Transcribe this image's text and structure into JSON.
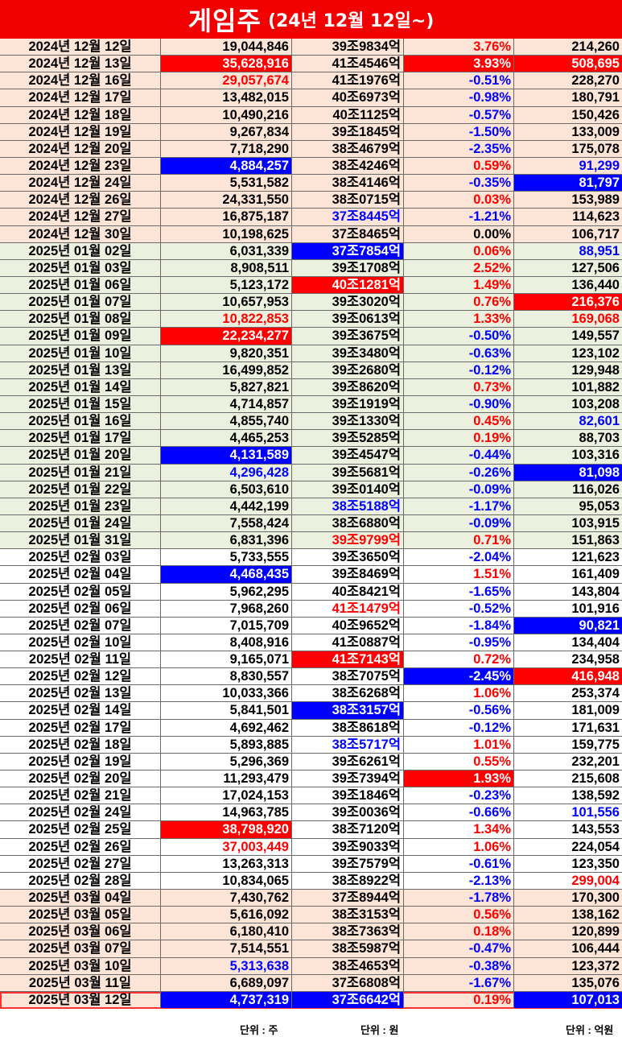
{
  "title": {
    "main": "게임주",
    "sub": "(24년 12월 12일~)"
  },
  "colors": {
    "title_bg": "#f20000",
    "peach": "#fce4d6",
    "green": "#ebf1de",
    "white": "#ffffff",
    "red": "#ff0000",
    "blue": "#0000ff"
  },
  "units": {
    "volume": "단위 : 주",
    "cap": "단위 : 원",
    "amount": "단위 : 억원"
  },
  "rows": [
    {
      "date": "2024년 12월 12일",
      "vol": "19,044,846",
      "cap": "39조9834억",
      "chg": "3.76%",
      "amt": "214,260",
      "bg": "peach",
      "vs": "n",
      "cs": "n",
      "hs": "r",
      "as": "n"
    },
    {
      "date": "2024년 12월 13일",
      "vol": "35,628,916",
      "cap": "41조4546억",
      "chg": "3.93%",
      "amt": "508,695",
      "bg": "peach",
      "vs": "R",
      "cs": "n",
      "hs": "R",
      "as": "R"
    },
    {
      "date": "2024년 12월 16일",
      "vol": "29,057,674",
      "cap": "41조1976억",
      "chg": "-0.51%",
      "amt": "228,270",
      "bg": "peach",
      "vs": "r",
      "cs": "n",
      "hs": "b",
      "as": "n"
    },
    {
      "date": "2024년 12월 17일",
      "vol": "13,482,015",
      "cap": "40조6973억",
      "chg": "-0.98%",
      "amt": "180,791",
      "bg": "peach",
      "vs": "n",
      "cs": "n",
      "hs": "b",
      "as": "n"
    },
    {
      "date": "2024년 12월 18일",
      "vol": "10,490,216",
      "cap": "40조1125억",
      "chg": "-0.57%",
      "amt": "150,426",
      "bg": "peach",
      "vs": "n",
      "cs": "n",
      "hs": "b",
      "as": "n"
    },
    {
      "date": "2024년 12월 19일",
      "vol": "9,267,834",
      "cap": "39조1845억",
      "chg": "-1.50%",
      "amt": "133,009",
      "bg": "peach",
      "vs": "n",
      "cs": "n",
      "hs": "b",
      "as": "n"
    },
    {
      "date": "2024년 12월 20일",
      "vol": "7,718,290",
      "cap": "38조4679억",
      "chg": "-2.35%",
      "amt": "175,078",
      "bg": "peach",
      "vs": "n",
      "cs": "n",
      "hs": "b",
      "as": "n"
    },
    {
      "date": "2024년 12월 23일",
      "vol": "4,884,257",
      "cap": "38조4246억",
      "chg": "0.59%",
      "amt": "91,299",
      "bg": "peach",
      "vs": "B",
      "cs": "n",
      "hs": "r",
      "as": "b"
    },
    {
      "date": "2024년 12월 24일",
      "vol": "5,531,582",
      "cap": "38조4146억",
      "chg": "-0.35%",
      "amt": "81,797",
      "bg": "peach",
      "vs": "n",
      "cs": "n",
      "hs": "b",
      "as": "B"
    },
    {
      "date": "2024년 12월 26일",
      "vol": "24,331,550",
      "cap": "38조0715억",
      "chg": "0.03%",
      "amt": "153,989",
      "bg": "peach",
      "vs": "n",
      "cs": "n",
      "hs": "r",
      "as": "n"
    },
    {
      "date": "2024년 12월 27일",
      "vol": "16,875,187",
      "cap": "37조8445억",
      "chg": "-1.21%",
      "amt": "114,623",
      "bg": "peach",
      "vs": "n",
      "cs": "b",
      "hs": "b",
      "as": "n"
    },
    {
      "date": "2024년 12월 30일",
      "vol": "10,198,625",
      "cap": "37조8465억",
      "chg": "0.00%",
      "amt": "106,717",
      "bg": "peach",
      "vs": "n",
      "cs": "n",
      "hs": "n",
      "as": "n"
    },
    {
      "date": "2025년 01월 02일",
      "vol": "6,031,339",
      "cap": "37조7854억",
      "chg": "0.06%",
      "amt": "88,951",
      "bg": "green",
      "vs": "n",
      "cs": "B",
      "hs": "r",
      "as": "b"
    },
    {
      "date": "2025년 01월 03일",
      "vol": "8,908,511",
      "cap": "39조1708억",
      "chg": "2.52%",
      "amt": "127,506",
      "bg": "green",
      "vs": "n",
      "cs": "n",
      "hs": "r",
      "as": "n"
    },
    {
      "date": "2025년 01월 06일",
      "vol": "5,123,172",
      "cap": "40조1281억",
      "chg": "1.49%",
      "amt": "136,440",
      "bg": "green",
      "vs": "n",
      "cs": "R",
      "hs": "r",
      "as": "n"
    },
    {
      "date": "2025년 01월 07일",
      "vol": "10,657,953",
      "cap": "39조3020억",
      "chg": "0.76%",
      "amt": "216,376",
      "bg": "green",
      "vs": "n",
      "cs": "n",
      "hs": "r",
      "as": "R"
    },
    {
      "date": "2025년 01월 08일",
      "vol": "10,822,853",
      "cap": "39조0613억",
      "chg": "1.33%",
      "amt": "169,068",
      "bg": "green",
      "vs": "r",
      "cs": "n",
      "hs": "r",
      "as": "r"
    },
    {
      "date": "2025년 01월 09일",
      "vol": "22,234,277",
      "cap": "39조3675억",
      "chg": "-0.50%",
      "amt": "149,557",
      "bg": "green",
      "vs": "R",
      "cs": "n",
      "hs": "b",
      "as": "n"
    },
    {
      "date": "2025년 01월 10일",
      "vol": "9,820,351",
      "cap": "39조3480억",
      "chg": "-0.63%",
      "amt": "123,102",
      "bg": "green",
      "vs": "n",
      "cs": "n",
      "hs": "b",
      "as": "n"
    },
    {
      "date": "2025년 01월 13일",
      "vol": "16,499,852",
      "cap": "39조2680억",
      "chg": "-0.12%",
      "amt": "129,948",
      "bg": "green",
      "vs": "n",
      "cs": "n",
      "hs": "b",
      "as": "n"
    },
    {
      "date": "2025년 01월 14일",
      "vol": "5,827,821",
      "cap": "39조8620억",
      "chg": "0.73%",
      "amt": "101,882",
      "bg": "green",
      "vs": "n",
      "cs": "n",
      "hs": "r",
      "as": "n"
    },
    {
      "date": "2025년 01월 15일",
      "vol": "4,714,857",
      "cap": "39조1919억",
      "chg": "-0.90%",
      "amt": "103,208",
      "bg": "green",
      "vs": "n",
      "cs": "n",
      "hs": "b",
      "as": "n"
    },
    {
      "date": "2025년 01월 16일",
      "vol": "4,855,740",
      "cap": "39조1330억",
      "chg": "0.45%",
      "amt": "82,601",
      "bg": "green",
      "vs": "n",
      "cs": "n",
      "hs": "r",
      "as": "b"
    },
    {
      "date": "2025년 01월 17일",
      "vol": "4,465,253",
      "cap": "39조5285억",
      "chg": "0.19%",
      "amt": "88,703",
      "bg": "green",
      "vs": "n",
      "cs": "n",
      "hs": "r",
      "as": "n"
    },
    {
      "date": "2025년 01월 20일",
      "vol": "4,131,589",
      "cap": "39조4547억",
      "chg": "-0.44%",
      "amt": "103,316",
      "bg": "green",
      "vs": "B",
      "cs": "n",
      "hs": "b",
      "as": "n"
    },
    {
      "date": "2025년 01월 21일",
      "vol": "4,296,428",
      "cap": "39조5681억",
      "chg": "-0.26%",
      "amt": "81,098",
      "bg": "green",
      "vs": "b",
      "cs": "n",
      "hs": "b",
      "as": "B"
    },
    {
      "date": "2025년 01월 22일",
      "vol": "6,503,610",
      "cap": "39조0140억",
      "chg": "-0.09%",
      "amt": "116,026",
      "bg": "green",
      "vs": "n",
      "cs": "n",
      "hs": "b",
      "as": "n"
    },
    {
      "date": "2025년 01월 23일",
      "vol": "4,442,199",
      "cap": "38조5188억",
      "chg": "-1.17%",
      "amt": "95,053",
      "bg": "green",
      "vs": "n",
      "cs": "b",
      "hs": "b",
      "as": "n"
    },
    {
      "date": "2025년 01월 24일",
      "vol": "7,558,424",
      "cap": "38조6880억",
      "chg": "-0.09%",
      "amt": "103,915",
      "bg": "green",
      "vs": "n",
      "cs": "n",
      "hs": "b",
      "as": "n"
    },
    {
      "date": "2025년 01월 31일",
      "vol": "6,831,396",
      "cap": "39조9799억",
      "chg": "0.71%",
      "amt": "151,863",
      "bg": "green",
      "vs": "n",
      "cs": "r",
      "hs": "r",
      "as": "n"
    },
    {
      "date": "2025년 02월 03일",
      "vol": "5,733,555",
      "cap": "39조3650억",
      "chg": "-2.04%",
      "amt": "121,623",
      "bg": "white",
      "vs": "n",
      "cs": "n",
      "hs": "b",
      "as": "n"
    },
    {
      "date": "2025년 02월 04일",
      "vol": "4,468,435",
      "cap": "39조8469억",
      "chg": "1.51%",
      "amt": "161,409",
      "bg": "white",
      "vs": "B",
      "cs": "n",
      "hs": "r",
      "as": "n"
    },
    {
      "date": "2025년 02월 05일",
      "vol": "5,962,295",
      "cap": "40조8421억",
      "chg": "-1.65%",
      "amt": "143,804",
      "bg": "white",
      "vs": "n",
      "cs": "n",
      "hs": "b",
      "as": "n"
    },
    {
      "date": "2025년 02월 06일",
      "vol": "7,968,260",
      "cap": "41조1479억",
      "chg": "-0.52%",
      "amt": "101,916",
      "bg": "white",
      "vs": "n",
      "cs": "r",
      "hs": "b",
      "as": "n"
    },
    {
      "date": "2025년 02월 07일",
      "vol": "7,015,709",
      "cap": "40조9652억",
      "chg": "-1.84%",
      "amt": "90,821",
      "bg": "white",
      "vs": "n",
      "cs": "n",
      "hs": "b",
      "as": "B"
    },
    {
      "date": "2025년 02월 10일",
      "vol": "8,408,916",
      "cap": "41조0887억",
      "chg": "-0.95%",
      "amt": "134,404",
      "bg": "white",
      "vs": "n",
      "cs": "n",
      "hs": "b",
      "as": "n"
    },
    {
      "date": "2025년 02월 11일",
      "vol": "9,165,071",
      "cap": "41조7143억",
      "chg": "0.72%",
      "amt": "234,958",
      "bg": "white",
      "vs": "n",
      "cs": "R",
      "hs": "r",
      "as": "n"
    },
    {
      "date": "2025년 02월 12일",
      "vol": "8,830,557",
      "cap": "38조7075억",
      "chg": "-2.45%",
      "amt": "416,948",
      "bg": "white",
      "vs": "n",
      "cs": "n",
      "hs": "B",
      "as": "R"
    },
    {
      "date": "2025년 02월 13일",
      "vol": "10,033,366",
      "cap": "38조6268억",
      "chg": "1.06%",
      "amt": "253,374",
      "bg": "white",
      "vs": "n",
      "cs": "n",
      "hs": "r",
      "as": "n"
    },
    {
      "date": "2025년 02월 14일",
      "vol": "5,841,501",
      "cap": "38조3157억",
      "chg": "-0.56%",
      "amt": "181,009",
      "bg": "white",
      "vs": "n",
      "cs": "B",
      "hs": "b",
      "as": "n"
    },
    {
      "date": "2025년 02월 17일",
      "vol": "4,692,462",
      "cap": "38조8618억",
      "chg": "-0.12%",
      "amt": "171,631",
      "bg": "white",
      "vs": "n",
      "cs": "n",
      "hs": "b",
      "as": "n"
    },
    {
      "date": "2025년 02월 18일",
      "vol": "5,893,885",
      "cap": "38조5717억",
      "chg": "1.01%",
      "amt": "159,775",
      "bg": "white",
      "vs": "n",
      "cs": "b",
      "hs": "r",
      "as": "n"
    },
    {
      "date": "2025년 02월 19일",
      "vol": "5,296,369",
      "cap": "39조6261억",
      "chg": "0.55%",
      "amt": "232,201",
      "bg": "white",
      "vs": "n",
      "cs": "n",
      "hs": "r",
      "as": "n"
    },
    {
      "date": "2025년 02월 20일",
      "vol": "11,293,479",
      "cap": "39조7394억",
      "chg": "1.93%",
      "amt": "215,608",
      "bg": "white",
      "vs": "n",
      "cs": "n",
      "hs": "R",
      "as": "n"
    },
    {
      "date": "2025년 02월 21일",
      "vol": "17,024,153",
      "cap": "39조1846억",
      "chg": "-0.23%",
      "amt": "138,592",
      "bg": "white",
      "vs": "n",
      "cs": "n",
      "hs": "b",
      "as": "n"
    },
    {
      "date": "2025년 02월 24일",
      "vol": "14,963,785",
      "cap": "39조0036억",
      "chg": "-0.66%",
      "amt": "101,556",
      "bg": "white",
      "vs": "n",
      "cs": "n",
      "hs": "b",
      "as": "b"
    },
    {
      "date": "2025년 02월 25일",
      "vol": "38,798,920",
      "cap": "38조7120억",
      "chg": "1.34%",
      "amt": "143,553",
      "bg": "white",
      "vs": "R",
      "cs": "n",
      "hs": "r",
      "as": "n"
    },
    {
      "date": "2025년 02월 26일",
      "vol": "37,003,449",
      "cap": "39조9033억",
      "chg": "1.06%",
      "amt": "224,054",
      "bg": "white",
      "vs": "r",
      "cs": "n",
      "hs": "r",
      "as": "n"
    },
    {
      "date": "2025년 02월 27일",
      "vol": "13,263,313",
      "cap": "39조7579억",
      "chg": "-0.61%",
      "amt": "123,350",
      "bg": "white",
      "vs": "n",
      "cs": "n",
      "hs": "b",
      "as": "n"
    },
    {
      "date": "2025년 02월 28일",
      "vol": "10,834,065",
      "cap": "38조8922억",
      "chg": "-2.13%",
      "amt": "299,004",
      "bg": "white",
      "vs": "n",
      "cs": "n",
      "hs": "b",
      "as": "r"
    },
    {
      "date": "2025년 03월 04일",
      "vol": "7,430,762",
      "cap": "37조8944억",
      "chg": "-1.78%",
      "amt": "170,300",
      "bg": "peach",
      "vs": "n",
      "cs": "n",
      "hs": "b",
      "as": "n"
    },
    {
      "date": "2025년 03월 05일",
      "vol": "5,616,092",
      "cap": "38조3153억",
      "chg": "0.56%",
      "amt": "138,162",
      "bg": "peach",
      "vs": "n",
      "cs": "n",
      "hs": "r",
      "as": "n"
    },
    {
      "date": "2025년 03월 06일",
      "vol": "6,180,410",
      "cap": "38조7363억",
      "chg": "0.18%",
      "amt": "120,899",
      "bg": "peach",
      "vs": "n",
      "cs": "n",
      "hs": "r",
      "as": "n"
    },
    {
      "date": "2025년 03월 07일",
      "vol": "7,514,551",
      "cap": "38조5987억",
      "chg": "-0.47%",
      "amt": "106,444",
      "bg": "peach",
      "vs": "n",
      "cs": "n",
      "hs": "b",
      "as": "n"
    },
    {
      "date": "2025년 03월 10일",
      "vol": "5,313,638",
      "cap": "38조4653억",
      "chg": "-0.38%",
      "amt": "123,372",
      "bg": "peach",
      "vs": "b",
      "cs": "n",
      "hs": "b",
      "as": "n"
    },
    {
      "date": "2025년 03월 11일",
      "vol": "6,689,097",
      "cap": "37조6808억",
      "chg": "-1.67%",
      "amt": "135,076",
      "bg": "peach",
      "vs": "n",
      "cs": "n",
      "hs": "b",
      "as": "n"
    },
    {
      "date": "2025년 03월 12일",
      "vol": "4,737,319",
      "cap": "37조6642억",
      "chg": "0.19%",
      "amt": "107,013",
      "bg": "peach",
      "vs": "B",
      "cs": "B",
      "hs": "r",
      "as": "B",
      "last": true
    }
  ]
}
